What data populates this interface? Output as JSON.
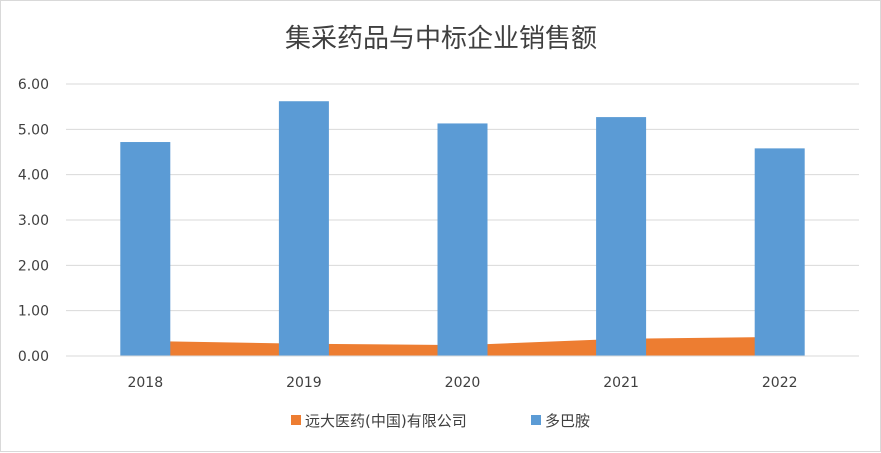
{
  "chart_data": {
    "type": "bar",
    "title": "集采药品与中标企业销售额",
    "categories": [
      "2018",
      "2019",
      "2020",
      "2021",
      "2022"
    ],
    "series": [
      {
        "name": "远大医药(中国)有限公司",
        "type": "area",
        "color": "#ed7d31",
        "values": [
          0.33,
          0.27,
          0.24,
          0.38,
          0.42
        ]
      },
      {
        "name": "多巴胺",
        "type": "bar",
        "color": "#5b9bd5",
        "values": [
          4.72,
          5.62,
          5.13,
          5.27,
          4.58
        ]
      }
    ],
    "ylim": [
      0,
      6
    ],
    "yticks": [
      "0.00",
      "1.00",
      "2.00",
      "3.00",
      "4.00",
      "5.00",
      "6.00"
    ],
    "grid": true,
    "legend_position": "bottom"
  }
}
